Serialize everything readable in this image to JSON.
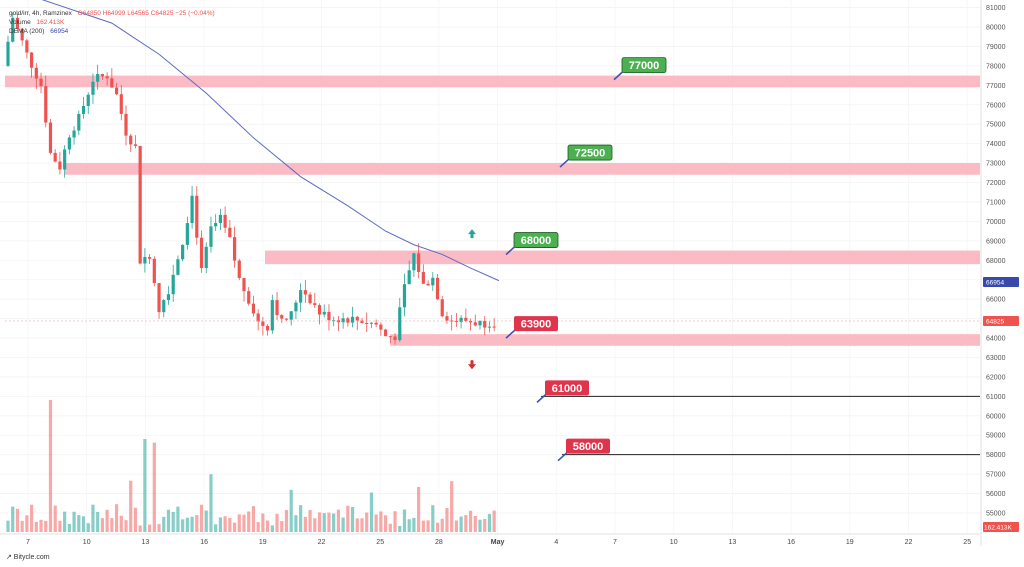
{
  "legend": {
    "symbol": "gold/irr, 4h, Ramzinex",
    "ohlc": "O64850  H64999  L64565  C64825  −25 (−0.04%)",
    "volume_label": "Volume",
    "volume_value": "162.413K",
    "dema_label": "DEMA (200)",
    "dema_value": "66954"
  },
  "badges": {
    "dema_price": "66954",
    "last_price": "64825",
    "last_volume": "162.413K"
  },
  "brand": "↗ Bitycle.com",
  "colors": {
    "up": "#26a69a",
    "down": "#ef5350",
    "zone": "#f9b4be",
    "dema": "#5c6bc0",
    "label_green": "#4caf50",
    "label_red": "#e0344d"
  },
  "chart_data": {
    "type": "candlestick",
    "y_axis": {
      "min": 53500,
      "max": 81000,
      "ticks": [
        55000,
        56000,
        57000,
        58000,
        59000,
        60000,
        61000,
        62000,
        63000,
        64000,
        65000,
        66000,
        67000,
        68000,
        69000,
        70000,
        71000,
        72000,
        73000,
        74000,
        75000,
        76000,
        77000,
        78000,
        79000,
        80000,
        81000
      ]
    },
    "x_ticks": [
      "7",
      "10",
      "13",
      "16",
      "19",
      "22",
      "25",
      "28",
      "May",
      "4",
      "7",
      "10",
      "13",
      "16",
      "19",
      "22",
      "25"
    ],
    "zones": [
      {
        "from": 76900,
        "to": 77500
      },
      {
        "from": 72400,
        "to": 73000
      },
      {
        "from": 67800,
        "to": 68500
      },
      {
        "from": 63600,
        "to": 64200
      }
    ],
    "levels": [
      {
        "label": "77000",
        "value": 77000,
        "style": "green"
      },
      {
        "label": "72500",
        "value": 72500,
        "style": "green"
      },
      {
        "label": "68000",
        "value": 68000,
        "style": "green"
      },
      {
        "label": "63900",
        "value": 63900,
        "style": "red"
      },
      {
        "label": "61000",
        "value": 61000,
        "style": "red",
        "line": true
      },
      {
        "label": "58000",
        "value": 58000,
        "style": "red",
        "line": true
      }
    ],
    "arrows": [
      {
        "direction": "up",
        "value": 69400
      },
      {
        "direction": "down",
        "value": 62600
      }
    ],
    "dema": [
      {
        "t": 0,
        "v": 82000
      },
      {
        "t": 22,
        "v": 80200
      },
      {
        "t": 32,
        "v": 78600
      },
      {
        "t": 42,
        "v": 76600
      },
      {
        "t": 52,
        "v": 74300
      },
      {
        "t": 62,
        "v": 72300
      },
      {
        "t": 72,
        "v": 70800
      },
      {
        "t": 80,
        "v": 69500
      },
      {
        "t": 86,
        "v": 68800
      },
      {
        "t": 92,
        "v": 68300
      },
      {
        "t": 98,
        "v": 67600
      },
      {
        "t": 104,
        "v": 66954
      }
    ],
    "anchors": [
      {
        "t": 0,
        "v": 78000
      },
      {
        "t": 2,
        "v": 80500
      },
      {
        "t": 5,
        "v": 78600
      },
      {
        "t": 8,
        "v": 77000
      },
      {
        "t": 10,
        "v": 73500
      },
      {
        "t": 12,
        "v": 72800
      },
      {
        "t": 14,
        "v": 74500
      },
      {
        "t": 16,
        "v": 75300
      },
      {
        "t": 19,
        "v": 77300
      },
      {
        "t": 22,
        "v": 77500
      },
      {
        "t": 24,
        "v": 76500
      },
      {
        "t": 26,
        "v": 74600
      },
      {
        "t": 28,
        "v": 73800
      },
      {
        "t": 29,
        "v": 68000
      },
      {
        "t": 31,
        "v": 68300
      },
      {
        "t": 33,
        "v": 65500
      },
      {
        "t": 35,
        "v": 66500
      },
      {
        "t": 38,
        "v": 69000
      },
      {
        "t": 40,
        "v": 71300
      },
      {
        "t": 42,
        "v": 67400
      },
      {
        "t": 44,
        "v": 69600
      },
      {
        "t": 46,
        "v": 70100
      },
      {
        "t": 48,
        "v": 69000
      },
      {
        "t": 50,
        "v": 67000
      },
      {
        "t": 52,
        "v": 66000
      },
      {
        "t": 54,
        "v": 64800
      },
      {
        "t": 56,
        "v": 64600
      },
      {
        "t": 57,
        "v": 66000
      },
      {
        "t": 59,
        "v": 64800
      },
      {
        "t": 61,
        "v": 65200
      },
      {
        "t": 63,
        "v": 66600
      },
      {
        "t": 65,
        "v": 66000
      },
      {
        "t": 67,
        "v": 65300
      },
      {
        "t": 70,
        "v": 65000
      },
      {
        "t": 73,
        "v": 65000
      },
      {
        "t": 76,
        "v": 64900
      },
      {
        "t": 79,
        "v": 64700
      },
      {
        "t": 81,
        "v": 64100
      },
      {
        "t": 83,
        "v": 64100
      },
      {
        "t": 85,
        "v": 66600
      },
      {
        "t": 87,
        "v": 68300
      },
      {
        "t": 89,
        "v": 66700
      },
      {
        "t": 91,
        "v": 67100
      },
      {
        "t": 93,
        "v": 65300
      },
      {
        "t": 95,
        "v": 64900
      },
      {
        "t": 98,
        "v": 64900
      },
      {
        "t": 101,
        "v": 64750
      },
      {
        "t": 103,
        "v": 64825
      }
    ]
  }
}
